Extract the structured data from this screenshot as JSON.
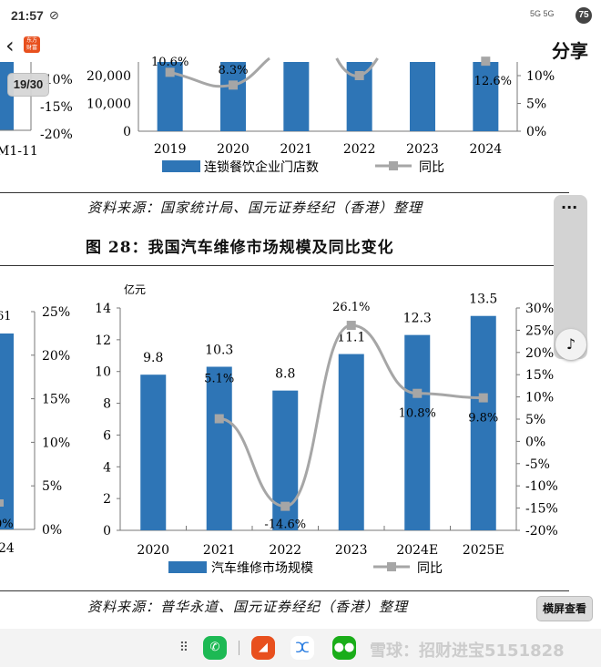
{
  "status_bar": {
    "time": "21:57",
    "battery": "75",
    "signal": "5G 5G"
  },
  "header": {
    "share_label": "分享",
    "logo_text": "东方财富"
  },
  "page_indicator": "19/30",
  "top_chart": {
    "chart_data": {
      "type": "bar",
      "categories": [
        "2019",
        "2020",
        "2021",
        "2022",
        "2023",
        "2024"
      ],
      "series": [
        {
          "name": "连锁餐饮企业门店数",
          "type": "bar"
        },
        {
          "name": "同比",
          "type": "line",
          "values_visible": {
            "2019": 10.6,
            "2020": 8.3,
            "2022": 10,
            "2024": 12.6
          }
        }
      ],
      "data_labels": [
        "10.6%",
        "8.3%",
        "12.6%"
      ],
      "left_ticks": [
        "0",
        "10,000",
        "20,000"
      ],
      "right_ticks": [
        "0%",
        "5%",
        "10%"
      ],
      "bar_color": "#2e75b6",
      "line_color": "#a6a6a6"
    },
    "left_partial": {
      "ticks": [
        "-10%",
        "-15%",
        "-20%"
      ],
      "xlabel": "M1-11"
    }
  },
  "source_1": "资料来源：国家统计局、国元证券经纪（香港）整理",
  "figure_title": "图 28：我国汽车维修市场规模及同比变化",
  "left_partial_2": {
    "ticks": [
      "25%",
      "20%",
      "15%",
      "10%",
      "5%",
      "0%"
    ],
    "label_top": "61",
    "label_bottom": "0%",
    "xlabel": "24"
  },
  "chart_data": {
    "type": "bar",
    "categories": [
      "2020",
      "2021",
      "2022",
      "2023",
      "2024E",
      "2025E"
    ],
    "ylabel": "亿元",
    "ylim": [
      0,
      14
    ],
    "y_ticks": [
      "0",
      "2",
      "4",
      "6",
      "8",
      "10",
      "12",
      "14"
    ],
    "y2lim": [
      -20,
      30
    ],
    "y2_ticks": [
      "-20%",
      "-15%",
      "-10%",
      "-5%",
      "0%",
      "5%",
      "10%",
      "15%",
      "20%",
      "25%",
      "30%"
    ],
    "series": [
      {
        "name": "汽车维修市场规模",
        "type": "bar",
        "values": [
          9.8,
          10.3,
          8.8,
          11.1,
          12.3,
          13.5
        ],
        "labels": [
          "9.8",
          "10.3",
          "8.8",
          "11.1",
          "12.3",
          "13.5"
        ],
        "color": "#2e75b6"
      },
      {
        "name": "同比",
        "type": "line",
        "values": [
          null,
          5.1,
          -14.6,
          26.1,
          10.8,
          9.8
        ],
        "labels": [
          "",
          "5.1%",
          "-14.6%",
          "26.1%",
          "10.8%",
          "9.8%"
        ],
        "color": "#a6a6a6"
      }
    ],
    "legend": "bottom"
  },
  "source_2": "资料来源：普华永道、国元证券经纪（香港）整理",
  "side_widget": {
    "more": "···",
    "music_icon": "♪"
  },
  "landscape_button": "横屏查看",
  "watermark": "雪球：招财进宝5151828"
}
